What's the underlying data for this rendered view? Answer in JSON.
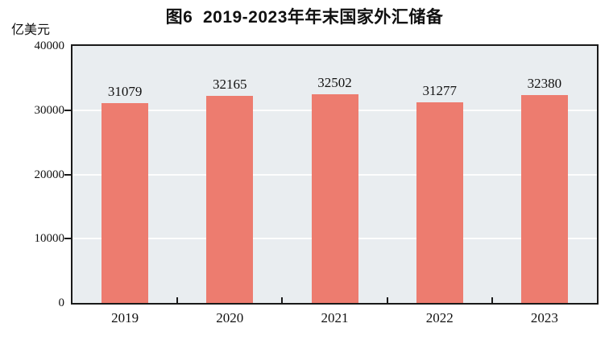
{
  "chart_data": {
    "type": "bar",
    "title": "图6  2019-2023年年末国家外汇储备",
    "unit": "亿美元",
    "categories": [
      "2019",
      "2020",
      "2021",
      "2022",
      "2023"
    ],
    "values": [
      31079,
      32165,
      32502,
      31277,
      32380
    ],
    "xlabel": "",
    "ylabel": "亿美元",
    "ylim": [
      0,
      40000
    ],
    "yticks": [
      0,
      10000,
      20000,
      30000,
      40000
    ],
    "grid": "horizontal-white-lines",
    "legend": "none",
    "colors": {
      "bar": "#ED7C6F",
      "plot_background": "#E9EDF0",
      "gridline": "#FDFDFD",
      "axis": "#1A1A1A",
      "text": "#111111"
    }
  }
}
